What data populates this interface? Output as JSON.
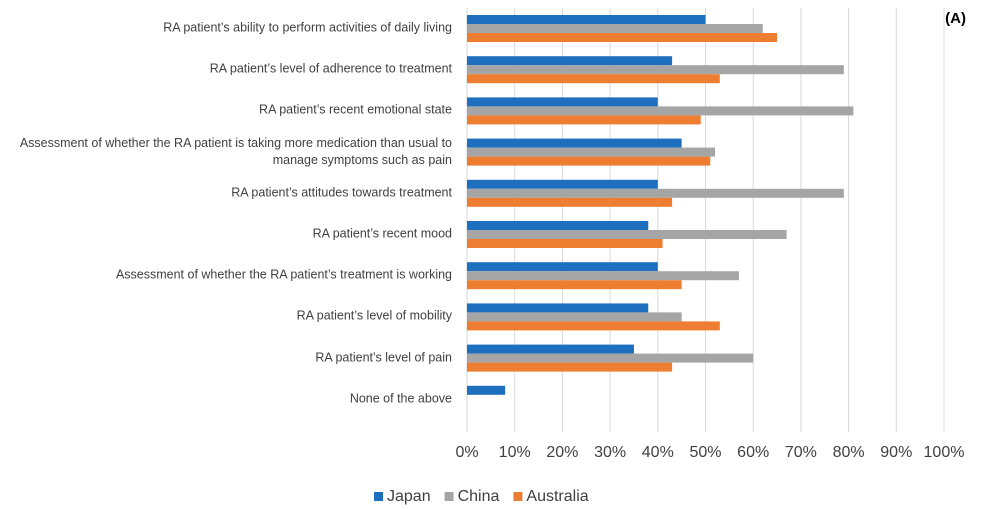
{
  "chart_data": {
    "type": "hbar",
    "annotation": "(A)",
    "categories": [
      "RA patient’s ability to perform activities of daily living",
      "RA patient’s level of adherence to treatment",
      "RA patient’s recent emotional state",
      "Assessment of whether the RA patient is taking more medication than usual to manage symptoms such as pain",
      "RA patient’s attitudes towards treatment",
      "RA patient’s recent mood",
      "Assessment of whether the RA patient’s treatment is working",
      "RA patient’s level of mobility",
      "RA patient’s level of pain",
      "None of the above"
    ],
    "series": [
      {
        "name": "Japan",
        "color": "#1f6fbf",
        "values": [
          50,
          43,
          40,
          45,
          40,
          38,
          40,
          38,
          35,
          8
        ]
      },
      {
        "name": "China",
        "color": "#a5a5a5",
        "values": [
          62,
          79,
          81,
          52,
          79,
          67,
          57,
          45,
          60,
          0
        ]
      },
      {
        "name": "Australia",
        "color": "#ed7d31",
        "values": [
          65,
          53,
          49,
          51,
          43,
          41,
          45,
          53,
          43,
          0
        ]
      }
    ],
    "xlim": [
      0,
      100
    ],
    "xticks": [
      {
        "value": 0,
        "label": "0%"
      },
      {
        "value": 10,
        "label": "10%"
      },
      {
        "value": 20,
        "label": "20%"
      },
      {
        "value": 30,
        "label": "30%"
      },
      {
        "value": 40,
        "label": "40%"
      },
      {
        "value": 50,
        "label": "50%"
      },
      {
        "value": 60,
        "label": "60%"
      },
      {
        "value": 70,
        "label": "70%"
      },
      {
        "value": 80,
        "label": "80%"
      },
      {
        "value": 90,
        "label": "90%"
      },
      {
        "value": 100,
        "label": "100%"
      }
    ],
    "grid": true,
    "legend": "bottom"
  }
}
